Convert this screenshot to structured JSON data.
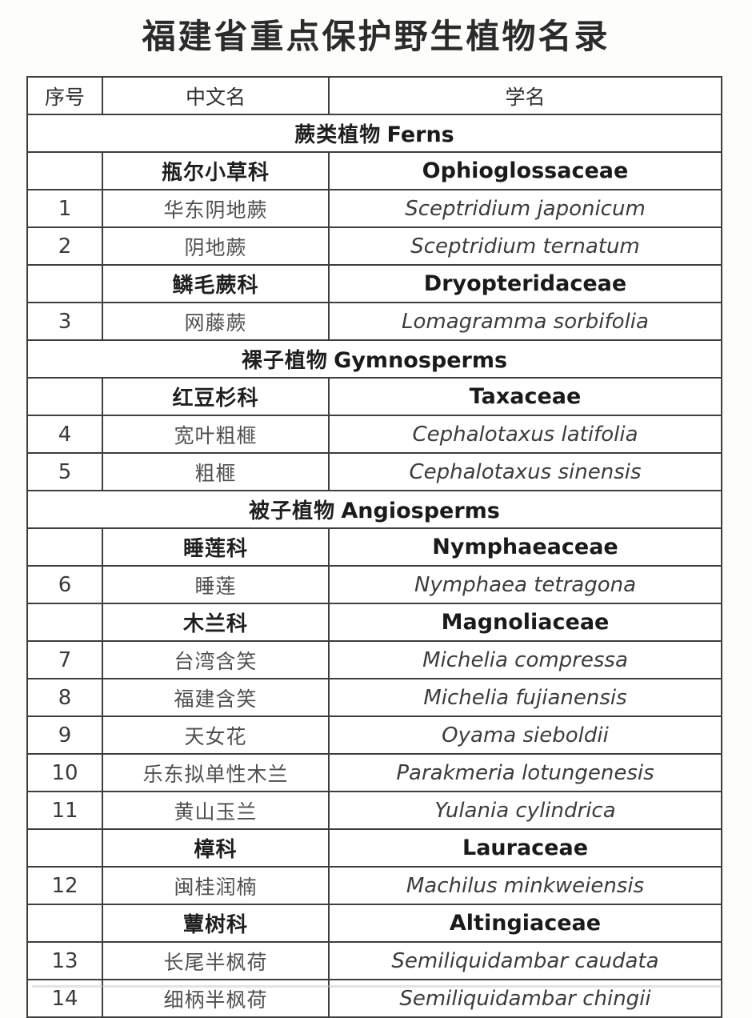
{
  "page": {
    "title": "福建省重点保护野生植物名录"
  },
  "colors": {
    "border": "#3e3e3e",
    "title_text": "#2b2b2b",
    "body_text": "#4f4f4f",
    "bold_text": "#1a1a1a",
    "background": "#ffffff"
  },
  "table": {
    "headers": [
      "序号",
      "中文名",
      "学名"
    ],
    "rows": [
      {
        "type": "section",
        "cn": "蕨类植物",
        "latin": "Ferns"
      },
      {
        "type": "family",
        "cn": "瓶尔小草科",
        "latin": "Ophioglossaceae"
      },
      {
        "type": "species",
        "no": "1",
        "cn": "华东阴地蕨",
        "latin": "Sceptridium japonicum"
      },
      {
        "type": "species",
        "no": "2",
        "cn": "阴地蕨",
        "latin": "Sceptridium ternatum"
      },
      {
        "type": "family",
        "cn": "鳞毛蕨科",
        "latin": "Dryopteridaceae"
      },
      {
        "type": "species",
        "no": "3",
        "cn": "网藤蕨",
        "latin": "Lomagramma sorbifolia"
      },
      {
        "type": "section",
        "cn": "裸子植物",
        "latin": "Gymnosperms"
      },
      {
        "type": "family",
        "cn": "红豆杉科",
        "latin": "Taxaceae"
      },
      {
        "type": "species",
        "no": "4",
        "cn": "宽叶粗榧",
        "latin": "Cephalotaxus latifolia"
      },
      {
        "type": "species",
        "no": "5",
        "cn": "粗榧",
        "latin": "Cephalotaxus sinensis"
      },
      {
        "type": "section",
        "cn": "被子植物",
        "latin": "Angiosperms"
      },
      {
        "type": "family",
        "cn": "睡莲科",
        "latin": "Nymphaeaceae"
      },
      {
        "type": "species",
        "no": "6",
        "cn": "睡莲",
        "latin": "Nymphaea tetragona"
      },
      {
        "type": "family",
        "cn": "木兰科",
        "latin": "Magnoliaceae"
      },
      {
        "type": "species",
        "no": "7",
        "cn": "台湾含笑",
        "latin": "Michelia compressa"
      },
      {
        "type": "species",
        "no": "8",
        "cn": "福建含笑",
        "latin": "Michelia fujianensis"
      },
      {
        "type": "species",
        "no": "9",
        "cn": "天女花",
        "latin": "Oyama sieboldii"
      },
      {
        "type": "species",
        "no": "10",
        "cn": "乐东拟单性木兰",
        "latin": "Parakmeria lotungenesis"
      },
      {
        "type": "species",
        "no": "11",
        "cn": "黄山玉兰",
        "latin": "Yulania cylindrica"
      },
      {
        "type": "family",
        "cn": "樟科",
        "latin": "Lauraceae"
      },
      {
        "type": "species",
        "no": "12",
        "cn": "闽桂润楠",
        "latin": "Machilus minkweiensis"
      },
      {
        "type": "family",
        "cn": "蕈树科",
        "latin": "Altingiaceae"
      },
      {
        "type": "species",
        "no": "13",
        "cn": "长尾半枫荷",
        "latin": "Semiliquidambar caudata"
      },
      {
        "type": "species",
        "no": "14",
        "cn": "细柄半枫荷",
        "latin": "Semiliquidambar chingii"
      }
    ]
  }
}
